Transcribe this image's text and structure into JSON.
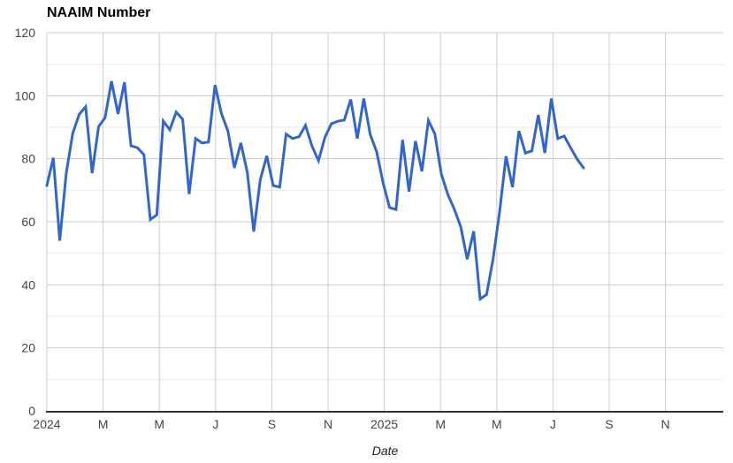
{
  "page": {
    "title": "NAAIM Number"
  },
  "chart_data": {
    "type": "line",
    "title": "NAAIM Number",
    "xlabel": "Date",
    "ylabel": "",
    "grid": true,
    "legend": "none",
    "line_color": "#3366cc",
    "gridline_major_color": "#cccccc",
    "gridline_minor_color": "#ebebeb",
    "axis_line_color": "#333333",
    "tick_label_color": "#444444",
    "x_axis": {
      "label": "Date",
      "tick_labels": [
        "2024",
        "M",
        "M",
        "J",
        "S",
        "N",
        "2025",
        "M",
        "M",
        "J",
        "S",
        "N"
      ],
      "tick_interval_months": 2,
      "range_start": "Jan 2024",
      "range_end": "Jan 2026"
    },
    "y_axis": {
      "ticks": [
        0,
        20,
        40,
        60,
        80,
        100,
        120
      ],
      "minor_step": 10,
      "range": [
        0,
        120
      ]
    },
    "series": [
      {
        "name": "NAAIM Number",
        "color": "#3366cc",
        "frequency": "weekly",
        "start": "Jan 2024",
        "end": "Aug 2025",
        "values": [
          71.5,
          80.3,
          54.0,
          75.4,
          88.1,
          94.1,
          96.5,
          75.4,
          90.2,
          93.0,
          104.6,
          94.2,
          104.3,
          84.1,
          83.5,
          81.3,
          60.7,
          62.2,
          92.0,
          89.2,
          94.8,
          92.5,
          68.8,
          86.4,
          85.0,
          85.3,
          103.4,
          94.3,
          88.8,
          77.1,
          85.0,
          75.7,
          56.9,
          73.4,
          80.9,
          71.5,
          71.0,
          87.8,
          86.4,
          87.0,
          90.6,
          84.0,
          79.4,
          86.8,
          91.1,
          91.9,
          92.3,
          98.8,
          86.4,
          99.1,
          87.7,
          82.2,
          72.3,
          64.5,
          63.9,
          86.0,
          69.6,
          85.6,
          76.0,
          92.2,
          87.9,
          75.2,
          68.7,
          64.0,
          58.4,
          48.1,
          57.0,
          35.5,
          36.9,
          48.1,
          63.1,
          80.8,
          71.0,
          88.8,
          81.8,
          82.5,
          93.9,
          81.8,
          99.1,
          86.4,
          87.2,
          83.5,
          79.9,
          77.1
        ]
      }
    ]
  }
}
